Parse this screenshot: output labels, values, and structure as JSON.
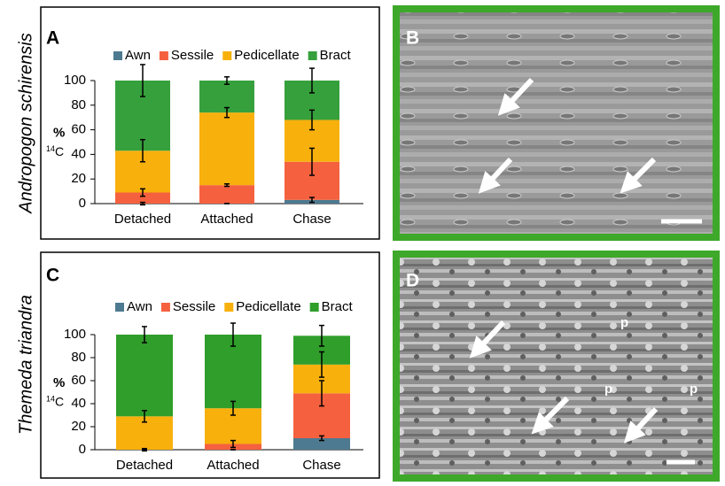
{
  "chart_data": [
    {
      "type": "stacked_bar",
      "panel": "A",
      "species": "Andropogon schirensis",
      "ylabel": {
        "symbol": "%",
        "superscript": "14",
        "text": "C"
      },
      "categories": [
        "Detached",
        "Attached",
        "Chase"
      ],
      "series": [
        {
          "name": "Awn",
          "color": "#4d7a90",
          "values": [
            0,
            0,
            3
          ],
          "errors": [
            1,
            0,
            2
          ]
        },
        {
          "name": "Sessile",
          "color": "#f5613f",
          "values": [
            9,
            15,
            31
          ],
          "errors": [
            3,
            1,
            11
          ]
        },
        {
          "name": "Pedicellate",
          "color": "#f8b00d",
          "values": [
            34,
            59,
            34
          ],
          "errors": [
            9,
            4,
            8
          ]
        },
        {
          "name": "Bract",
          "color": "#36a03c",
          "values": [
            57,
            26,
            32
          ],
          "errors": [
            13,
            3,
            10
          ]
        }
      ],
      "ylim": [
        0,
        100
      ],
      "yticks": [
        0,
        20,
        40,
        60,
        80,
        100
      ]
    },
    {
      "type": "stacked_bar",
      "panel": "C",
      "species": "Themeda triandra",
      "ylabel": {
        "symbol": "%",
        "superscript": "14",
        "text": "C"
      },
      "categories": [
        "Detached",
        "Attached",
        "Chase"
      ],
      "series": [
        {
          "name": "Awn",
          "color": "#4d7a90",
          "values": [
            0,
            0,
            10
          ],
          "errors": [
            0,
            0,
            2
          ]
        },
        {
          "name": "Sessile",
          "color": "#f5613f",
          "values": [
            0,
            5,
            39
          ],
          "errors": [
            1,
            3,
            11
          ]
        },
        {
          "name": "Pedicellate",
          "color": "#f8b00d",
          "values": [
            29,
            31,
            25
          ],
          "errors": [
            5,
            6,
            11
          ]
        },
        {
          "name": "Bract",
          "color": "#2f9e2a",
          "values": [
            71,
            64,
            25
          ],
          "errors": [
            7,
            10,
            9
          ]
        }
      ],
      "ylim": [
        0,
        100
      ],
      "yticks": [
        0,
        20,
        40,
        60,
        80,
        100
      ]
    }
  ],
  "images": [
    {
      "label": "B"
    },
    {
      "label": "D",
      "annotations": [
        "p",
        "p",
        "p"
      ]
    }
  ]
}
